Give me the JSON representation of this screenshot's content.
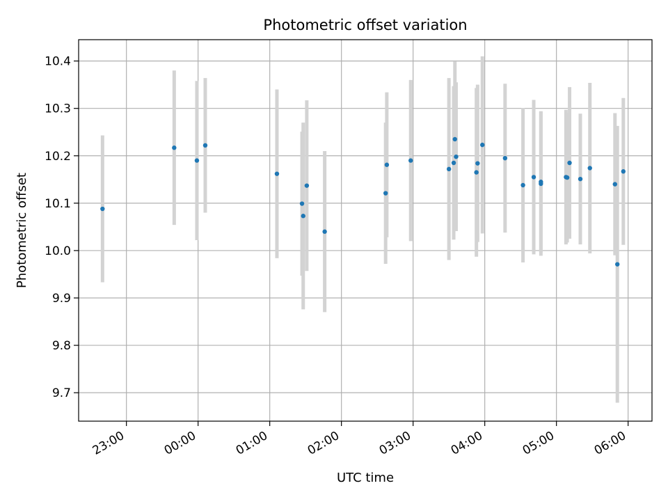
{
  "chart_data": {
    "type": "scatter",
    "title": "Photometric offset variation",
    "xlabel": "UTC time",
    "ylabel": "Photometric offset",
    "x_ticks": [
      "23:00",
      "00:00",
      "01:00",
      "02:00",
      "03:00",
      "04:00",
      "05:00",
      "06:00"
    ],
    "y_ticks": [
      "9.7",
      "9.8",
      "9.9",
      "10.0",
      "10.1",
      "10.2",
      "10.3",
      "10.4"
    ],
    "xlim": [
      "22:20",
      "06:20"
    ],
    "ylim": [
      9.64,
      10.445
    ],
    "grid": true,
    "colors": {
      "point": "#1f77b4",
      "errorbar": "#d3d3d3",
      "grid": "#b0b0b0"
    },
    "points": [
      {
        "t": "22:40",
        "y": 10.088,
        "err": 0.155
      },
      {
        "t": "23:40",
        "y": 10.217,
        "err": 0.163
      },
      {
        "t": "23:59",
        "y": 10.19,
        "err": 0.168
      },
      {
        "t": "00:06",
        "y": 10.222,
        "err": 0.142
      },
      {
        "t": "01:06",
        "y": 10.162,
        "err": 0.178
      },
      {
        "t": "01:27",
        "y": 10.099,
        "err": 0.152
      },
      {
        "t": "01:28",
        "y": 10.073,
        "err": 0.197
      },
      {
        "t": "01:31",
        "y": 10.137,
        "err": 0.18
      },
      {
        "t": "01:46",
        "y": 10.04,
        "err": 0.17
      },
      {
        "t": "02:37",
        "y": 10.121,
        "err": 0.149
      },
      {
        "t": "02:38",
        "y": 10.181,
        "err": 0.153
      },
      {
        "t": "02:58",
        "y": 10.19,
        "err": 0.17
      },
      {
        "t": "03:30",
        "y": 10.172,
        "err": 0.192
      },
      {
        "t": "03:34",
        "y": 10.185,
        "err": 0.162
      },
      {
        "t": "03:35",
        "y": 10.235,
        "err": 0.164
      },
      {
        "t": "03:36",
        "y": 10.198,
        "err": 0.157
      },
      {
        "t": "03:53",
        "y": 10.165,
        "err": 0.178
      },
      {
        "t": "03:54",
        "y": 10.184,
        "err": 0.166
      },
      {
        "t": "03:58",
        "y": 10.223,
        "err": 0.187
      },
      {
        "t": "04:17",
        "y": 10.195,
        "err": 0.157
      },
      {
        "t": "04:32",
        "y": 10.138,
        "err": 0.163
      },
      {
        "t": "04:41",
        "y": 10.155,
        "err": 0.163
      },
      {
        "t": "04:47",
        "y": 10.145,
        "err": 0.149
      },
      {
        "t": "04:47",
        "y": 10.141,
        "err": 0.152
      },
      {
        "t": "05:08",
        "y": 10.155,
        "err": 0.142
      },
      {
        "t": "05:09",
        "y": 10.154,
        "err": 0.137
      },
      {
        "t": "05:11",
        "y": 10.185,
        "err": 0.16
      },
      {
        "t": "05:20",
        "y": 10.151,
        "err": 0.138
      },
      {
        "t": "05:28",
        "y": 10.174,
        "err": 0.18
      },
      {
        "t": "05:49",
        "y": 10.14,
        "err": 0.15
      },
      {
        "t": "05:51",
        "y": 9.971,
        "err": 0.292
      },
      {
        "t": "05:56",
        "y": 10.167,
        "err": 0.155
      }
    ]
  }
}
